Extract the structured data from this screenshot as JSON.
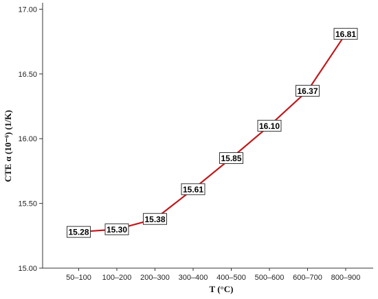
{
  "chart_data": {
    "type": "line",
    "categories": [
      "50–100",
      "100–200",
      "200–300",
      "300–400",
      "400–500",
      "500–600",
      "600–700",
      "800–900"
    ],
    "series": [
      {
        "values": [
          15.28,
          15.3,
          15.38,
          15.61,
          15.85,
          16.1,
          16.37,
          16.81
        ]
      }
    ],
    "data_labels": [
      "15.28",
      "15.30",
      "15.38",
      "15.61",
      "15.85",
      "16.10",
      "16.37",
      "16.81"
    ],
    "xlabel": "T (°C)",
    "ylabel": "CTE  α (10⁻⁶) (1/K)",
    "ylim": [
      15.0,
      17.05
    ],
    "yticks": [
      "15.00",
      "15.50",
      "16.00",
      "16.50",
      "17.00"
    ],
    "line_color": "#c0171b",
    "grid": false,
    "legend": "none"
  }
}
